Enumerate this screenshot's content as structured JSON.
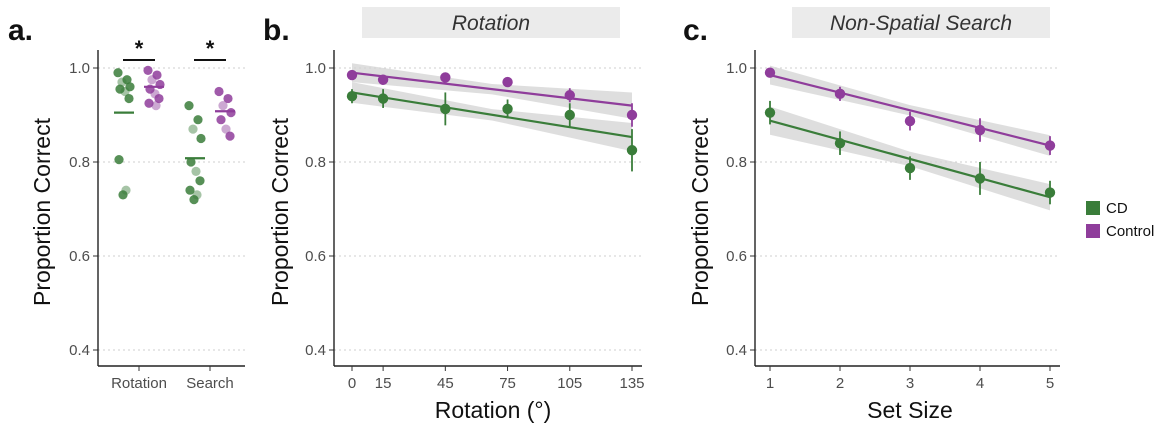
{
  "colors": {
    "CD": "#3a7d3a",
    "Control": "#8f3d9b",
    "ribbon": "#d3d3d3",
    "grid": "#cfcfcf",
    "strip": "#ebebeb"
  },
  "legend": {
    "placement": "right",
    "items": [
      {
        "label": "CD",
        "color": "#3a7d3a"
      },
      {
        "label": "Control",
        "color": "#8f3d9b"
      }
    ]
  },
  "chart_data": [
    {
      "panel": "a.",
      "type": "scatter",
      "title": "",
      "xlabel": "",
      "ylabel": "Proportion Correct",
      "ylim": [
        0.4,
        1.0
      ],
      "yticks": [
        0.4,
        0.6,
        0.8,
        1.0
      ],
      "ytick_labels": [
        "0.4",
        "0.6",
        "0.8",
        "1.0"
      ],
      "categories": [
        "Rotation",
        "Search"
      ],
      "significance": [
        "*",
        "*"
      ],
      "grid": "horizontal dotted",
      "series": [
        {
          "name": "CD",
          "means": [
            0.905,
            0.808
          ],
          "points": [
            [
              0.99,
              0.975,
              0.97,
              0.96,
              0.955,
              0.95,
              0.935,
              0.805,
              0.74,
              0.73
            ],
            [
              0.92,
              0.89,
              0.87,
              0.85,
              0.8,
              0.78,
              0.76,
              0.74,
              0.73,
              0.72
            ]
          ]
        },
        {
          "name": "Control",
          "means": [
            0.96,
            0.908
          ],
          "points": [
            [
              0.995,
              0.985,
              0.975,
              0.965,
              0.955,
              0.945,
              0.935,
              0.925,
              0.92
            ],
            [
              0.95,
              0.935,
              0.92,
              0.905,
              0.89,
              0.87,
              0.855
            ]
          ]
        }
      ]
    },
    {
      "panel": "b.",
      "type": "line",
      "strip_title": "Rotation",
      "xlabel": "Rotation (°)",
      "ylabel": "Proportion Correct",
      "xlim": [
        -5,
        140
      ],
      "ylim": [
        0.4,
        1.0
      ],
      "xticks": [
        0,
        15,
        45,
        75,
        105,
        135
      ],
      "yticks": [
        0.4,
        0.6,
        0.8,
        1.0
      ],
      "ytick_labels": [
        "0.4",
        "0.6",
        "0.8",
        "1.0"
      ],
      "grid": "horizontal dotted",
      "x": [
        0,
        15,
        45,
        75,
        105,
        135
      ],
      "series": [
        {
          "name": "CD",
          "values": [
            0.94,
            0.935,
            0.913,
            0.913,
            0.9,
            0.825
          ],
          "err": [
            0.015,
            0.02,
            0.035,
            0.02,
            0.025,
            0.045
          ],
          "fit": [
            0.948,
            0.853
          ],
          "ribbon": [
            0.022,
            0.03
          ]
        },
        {
          "name": "Control",
          "values": [
            0.985,
            0.975,
            0.98,
            0.97,
            0.942,
            0.9
          ],
          "err": [
            0.006,
            0.01,
            0.008,
            0.01,
            0.015,
            0.025
          ],
          "fit": [
            0.99,
            0.92
          ],
          "ribbon": [
            0.02,
            0.028
          ]
        }
      ]
    },
    {
      "panel": "c.",
      "type": "line",
      "strip_title": "Non-Spatial Search",
      "xlabel": "Set Size",
      "ylabel": "Proportion Correct",
      "xlim": [
        0.85,
        5.15
      ],
      "ylim": [
        0.4,
        1.0
      ],
      "xticks": [
        1,
        2,
        3,
        4,
        5
      ],
      "yticks": [
        0.4,
        0.6,
        0.8,
        1.0
      ],
      "ytick_labels": [
        "0.4",
        "0.6",
        "0.8",
        "1.0"
      ],
      "grid": "horizontal dotted",
      "x": [
        1,
        2,
        3,
        4,
        5
      ],
      "series": [
        {
          "name": "CD",
          "values": [
            0.905,
            0.84,
            0.787,
            0.765,
            0.735
          ],
          "err": [
            0.025,
            0.025,
            0.025,
            0.035,
            0.025
          ],
          "fit": [
            0.888,
            0.725
          ],
          "ribbon": [
            0.03,
            0.028
          ]
        },
        {
          "name": "Control",
          "values": [
            0.99,
            0.945,
            0.887,
            0.868,
            0.835
          ],
          "err": [
            0.008,
            0.015,
            0.02,
            0.025,
            0.02
          ],
          "fit": [
            0.985,
            0.835
          ],
          "ribbon": [
            0.02,
            0.022
          ]
        }
      ]
    }
  ]
}
